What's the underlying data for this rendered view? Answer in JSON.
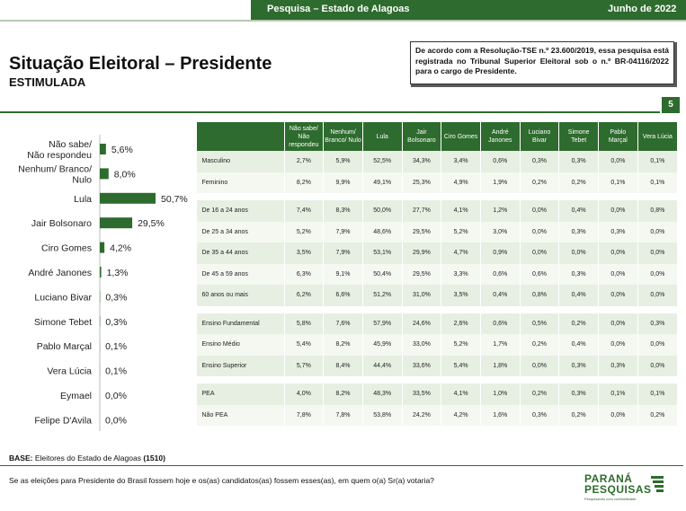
{
  "header": {
    "left": "Pesquisa – Estado de Alagoas",
    "right": "Junho de 2022"
  },
  "title": "Situação Eleitoral – Presidente",
  "subtitle": "ESTIMULADA",
  "notice": "De acordo com a Resolução-TSE n.º 23.600/2019, essa pesquisa está registrada no Tribunal Superior Eleitoral sob o n.º BR-04116/2022 para o cargo de Presidente.",
  "page_number": "5",
  "base": {
    "label": "BASE:",
    "text": "Eleitores do Estado de Alagoas",
    "n": "(1510)"
  },
  "question": "Se as eleições para Presidente do Brasil fossem hoje e os(as) candidatos(as) fossem esses(as), em quem o(a) Sr(a) votaria?",
  "logo": {
    "line1": "PARANÁ",
    "line2": "PESQUISAS",
    "tagline": "Pesquisando com confiabilidade"
  },
  "colors": {
    "primary": "#2e6b2e",
    "bar": "#2e6b2e"
  },
  "chart_data": {
    "type": "bar",
    "orientation": "horizontal",
    "categories": [
      "Não sabe/ Não respondeu",
      "Nenhum/ Branco/ Nulo",
      "Lula",
      "Jair Bolsonaro",
      "Ciro Gomes",
      "André Janones",
      "Luciano Bivar",
      "Simone Tebet",
      "Pablo Marçal",
      "Vera Lúcia",
      "Eymael",
      "Felipe D'Avila"
    ],
    "category_lines": [
      [
        "Não sabe/",
        "Não respondeu"
      ],
      [
        "Nenhum/ Branco/",
        "Nulo"
      ],
      [
        "Lula"
      ],
      [
        "Jair Bolsonaro"
      ],
      [
        "Ciro Gomes"
      ],
      [
        "André Janones"
      ],
      [
        "Luciano Bivar"
      ],
      [
        "Simone Tebet"
      ],
      [
        "Pablo Marçal"
      ],
      [
        "Vera Lúcia"
      ],
      [
        "Eymael"
      ],
      [
        "Felipe D'Avila"
      ]
    ],
    "values": [
      5.6,
      8.0,
      50.7,
      29.5,
      4.2,
      1.3,
      0.3,
      0.3,
      0.1,
      0.1,
      0.0,
      0.0
    ],
    "labels": [
      "5,6%",
      "8,0%",
      "50,7%",
      "29,5%",
      "4,2%",
      "1,3%",
      "0,3%",
      "0,3%",
      "0,1%",
      "0,1%",
      "0,0%",
      "0,0%"
    ],
    "xlim": [
      0,
      55
    ]
  },
  "table": {
    "headers": [
      "Não sabe/ Não respondeu",
      "Nenhum/ Branco/ Nulo",
      "Lula",
      "Jair Bolsonaro",
      "Ciro Gomes",
      "André Janones",
      "Luciano Bivar",
      "Simone Tebet",
      "Pablo Marçal",
      "Vera Lúcia"
    ],
    "groups": [
      {
        "rows": [
          {
            "label": "Masculino",
            "values": [
              "2,7%",
              "5,9%",
              "52,5%",
              "34,3%",
              "3,4%",
              "0,6%",
              "0,3%",
              "0,3%",
              "0,0%",
              "0,1%"
            ]
          },
          {
            "label": "Feminino",
            "values": [
              "8,2%",
              "9,9%",
              "49,1%",
              "25,3%",
              "4,9%",
              "1,9%",
              "0,2%",
              "0,2%",
              "0,1%",
              "0,1%"
            ]
          }
        ]
      },
      {
        "rows": [
          {
            "label": "De 16 a 24 anos",
            "values": [
              "7,4%",
              "8,3%",
              "50,0%",
              "27,7%",
              "4,1%",
              "1,2%",
              "0,0%",
              "0,4%",
              "0,0%",
              "0,8%"
            ]
          },
          {
            "label": "De 25 a 34 anos",
            "values": [
              "5,2%",
              "7,9%",
              "48,6%",
              "29,5%",
              "5,2%",
              "3,0%",
              "0,0%",
              "0,3%",
              "0,3%",
              "0,0%"
            ]
          },
          {
            "label": "De 35 a 44 anos",
            "values": [
              "3,5%",
              "7,9%",
              "53,1%",
              "29,9%",
              "4,7%",
              "0,9%",
              "0,0%",
              "0,0%",
              "0,0%",
              "0,0%"
            ]
          },
          {
            "label": "De 45 a 59 anos",
            "values": [
              "6,3%",
              "9,1%",
              "50,4%",
              "29,5%",
              "3,3%",
              "0,6%",
              "0,6%",
              "0,3%",
              "0,0%",
              "0,0%"
            ]
          },
          {
            "label": "60 anos ou mais",
            "values": [
              "6,2%",
              "6,6%",
              "51,2%",
              "31,0%",
              "3,5%",
              "0,4%",
              "0,8%",
              "0,4%",
              "0,0%",
              "0,0%"
            ]
          }
        ]
      },
      {
        "rows": [
          {
            "label": "Ensino Fundamental",
            "values": [
              "5,8%",
              "7,6%",
              "57,9%",
              "24,6%",
              "2,6%",
              "0,6%",
              "0,5%",
              "0,2%",
              "0,0%",
              "0,3%"
            ]
          },
          {
            "label": "Ensino Médio",
            "values": [
              "5,4%",
              "8,2%",
              "45,9%",
              "33,0%",
              "5,2%",
              "1,7%",
              "0,2%",
              "0,4%",
              "0,0%",
              "0,0%"
            ]
          },
          {
            "label": "Ensino Superior",
            "values": [
              "5,7%",
              "8,4%",
              "44,4%",
              "33,6%",
              "5,4%",
              "1,8%",
              "0,0%",
              "0,3%",
              "0,3%",
              "0,0%"
            ]
          }
        ]
      },
      {
        "rows": [
          {
            "label": "PEA",
            "values": [
              "4,0%",
              "8,2%",
              "48,3%",
              "33,5%",
              "4,1%",
              "1,0%",
              "0,2%",
              "0,3%",
              "0,1%",
              "0,1%"
            ]
          },
          {
            "label": "Não PEA",
            "values": [
              "7,8%",
              "7,8%",
              "53,8%",
              "24,2%",
              "4,2%",
              "1,6%",
              "0,3%",
              "0,2%",
              "0,0%",
              "0,2%"
            ]
          }
        ]
      }
    ]
  }
}
